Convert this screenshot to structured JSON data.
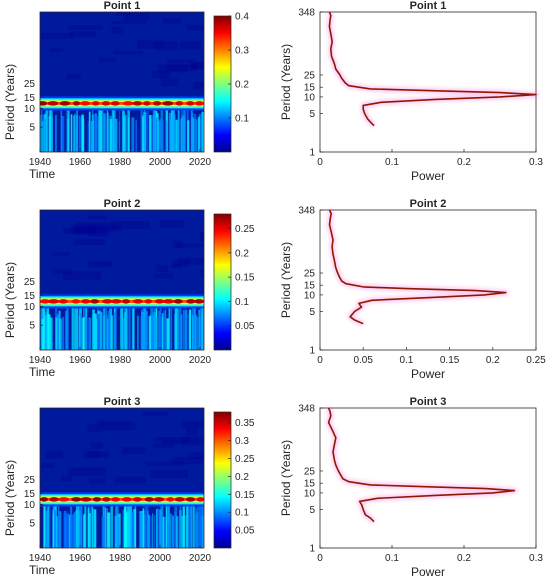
{
  "figure": {
    "panels": [
      {
        "scalogram": {
          "title": "Point 1",
          "xlabel": "Time",
          "ylabel": "Period (Years)",
          "xticks": [
            "1940",
            "1960",
            "1980",
            "2000",
            "2020"
          ],
          "yticks": [
            "5",
            "10",
            "15",
            "25"
          ],
          "colorbar_ticks": [
            "0.1",
            "0.2",
            "0.3",
            "0.4"
          ]
        },
        "spectrum": {
          "title": "Point 1",
          "xlabel": "Power",
          "ylabel": "Period (Years)",
          "xticks": [
            "0",
            "0.1",
            "0.2",
            "0.3"
          ],
          "yticks": [
            "1",
            "5",
            "10",
            "15",
            "25",
            "348"
          ]
        }
      },
      {
        "scalogram": {
          "title": "Point 2",
          "xlabel": "Time",
          "ylabel": "Period (Years)",
          "xticks": [
            "1940",
            "1960",
            "1980",
            "2000",
            "2020"
          ],
          "yticks": [
            "5",
            "10",
            "15",
            "25"
          ],
          "colorbar_ticks": [
            "0.05",
            "0.1",
            "0.15",
            "0.2",
            "0.25"
          ]
        },
        "spectrum": {
          "title": "Point 2",
          "xlabel": "Power",
          "ylabel": "Period (Years)",
          "xticks": [
            "0",
            "0.05",
            "0.1",
            "0.15",
            "0.2",
            "0.25"
          ],
          "yticks": [
            "1",
            "5",
            "10",
            "15",
            "25",
            "348"
          ]
        }
      },
      {
        "scalogram": {
          "title": "Point 3",
          "xlabel": "Time",
          "ylabel": "Period (Years)",
          "xticks": [
            "1940",
            "1960",
            "1980",
            "2000",
            "2020"
          ],
          "yticks": [
            "5",
            "10",
            "15",
            "25"
          ],
          "colorbar_ticks": [
            "0.05",
            "0.1",
            "0.15",
            "0.2",
            "0.25",
            "0.3",
            "0.35"
          ]
        },
        "spectrum": {
          "title": "Point 3",
          "xlabel": "Power",
          "ylabel": "Period (Years)",
          "xticks": [
            "0",
            "0.1",
            "0.2",
            "0.3"
          ],
          "yticks": [
            "1",
            "5",
            "10",
            "15",
            "25",
            "348"
          ]
        }
      }
    ]
  },
  "colors": {
    "spectrum_line": "#8b1a00",
    "spectrum_band": "#ff4fd8",
    "colormap": "jet"
  },
  "chart_data": [
    {
      "type": "heatmap",
      "title": "Point 1",
      "xlabel": "Time",
      "ylabel": "Period (Years)",
      "xlim": [
        1940,
        2022
      ],
      "ylim": [
        2,
        348
      ],
      "colorbar_range": [
        0,
        0.4
      ],
      "dominant_period": 12,
      "peak_power": 0.4
    },
    {
      "type": "line",
      "title": "Point 1",
      "xlabel": "Power",
      "ylabel": "Period (Years)",
      "xlim": [
        0,
        0.3
      ],
      "ylim": [
        1,
        348
      ],
      "y_scale": "log",
      "x": [
        0.075,
        0.07,
        0.066,
        0.062,
        0.06,
        0.06,
        0.085,
        0.16,
        0.25,
        0.3,
        0.25,
        0.15,
        0.07,
        0.04,
        0.035,
        0.03,
        0.027,
        0.022,
        0.02,
        0.016,
        0.015,
        0.017,
        0.015,
        0.013,
        0.014,
        0.015,
        0.013
      ],
      "y": [
        3,
        3.5,
        4,
        5,
        6,
        7,
        8,
        9,
        10,
        11,
        12,
        13,
        14,
        16,
        18,
        22,
        26,
        32,
        40,
        55,
        75,
        100,
        140,
        190,
        250,
        300,
        348
      ]
    },
    {
      "type": "heatmap",
      "title": "Point 2",
      "xlabel": "Time",
      "ylabel": "Period (Years)",
      "xlim": [
        1940,
        2022
      ],
      "ylim": [
        2,
        348
      ],
      "colorbar_range": [
        0,
        0.28
      ],
      "dominant_period": 12,
      "peak_power": 0.27
    },
    {
      "type": "line",
      "title": "Point 2",
      "xlabel": "Power",
      "ylabel": "Period (Years)",
      "xlim": [
        0,
        0.25
      ],
      "ylim": [
        1,
        348
      ],
      "y_scale": "log",
      "x": [
        0.05,
        0.04,
        0.035,
        0.04,
        0.048,
        0.045,
        0.06,
        0.13,
        0.19,
        0.215,
        0.18,
        0.1,
        0.05,
        0.03,
        0.025,
        0.022,
        0.02,
        0.018,
        0.017,
        0.015,
        0.014,
        0.015,
        0.013,
        0.011,
        0.012,
        0.013,
        0.011
      ],
      "y": [
        3,
        3.5,
        4,
        5,
        6,
        7,
        8,
        9,
        10,
        11,
        12,
        13,
        14,
        16,
        18,
        22,
        26,
        32,
        40,
        55,
        75,
        100,
        140,
        190,
        250,
        300,
        348
      ]
    },
    {
      "type": "heatmap",
      "title": "Point 3",
      "xlabel": "Time",
      "ylabel": "Period (Years)",
      "xlim": [
        1940,
        2022
      ],
      "ylim": [
        2,
        348
      ],
      "colorbar_range": [
        0,
        0.38
      ],
      "dominant_period": 12,
      "peak_power": 0.37
    },
    {
      "type": "line",
      "title": "Point 3",
      "xlabel": "Power",
      "ylabel": "Period (Years)",
      "xlim": [
        0,
        0.3
      ],
      "ylim": [
        1,
        348
      ],
      "y_scale": "log",
      "x": [
        0.075,
        0.07,
        0.063,
        0.06,
        0.058,
        0.055,
        0.08,
        0.16,
        0.24,
        0.27,
        0.23,
        0.14,
        0.07,
        0.04,
        0.032,
        0.028,
        0.025,
        0.022,
        0.02,
        0.018,
        0.02,
        0.022,
        0.017,
        0.012,
        0.015,
        0.014,
        0.012
      ],
      "y": [
        3,
        3.5,
        4,
        5,
        6,
        7,
        8,
        9,
        10,
        11,
        12,
        13,
        14,
        16,
        18,
        22,
        26,
        32,
        40,
        55,
        75,
        100,
        140,
        190,
        250,
        300,
        348
      ]
    }
  ]
}
